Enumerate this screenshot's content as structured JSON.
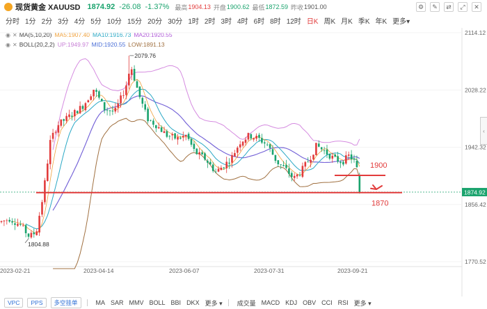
{
  "header": {
    "name": "现货黄金 XAUUSD",
    "price": "1874.92",
    "change": "-26.08",
    "percent": "-1.37%",
    "high_label": "最高",
    "high": "1904.13",
    "open_label": "开盘",
    "open": "1900.62",
    "low_label": "最低",
    "low": "1872.59",
    "prev_label": "昨收",
    "prev": "1901.00",
    "icons": [
      "settings-icon",
      "draw-icon",
      "compare-icon",
      "fullscreen-icon",
      "close-icon"
    ]
  },
  "tabs": [
    "分时",
    "1分",
    "2分",
    "3分",
    "4分",
    "5分",
    "10分",
    "15分",
    "20分",
    "30分",
    "1时",
    "2时",
    "3时",
    "4时",
    "6时",
    "8时",
    "12时",
    "日K",
    "周K",
    "月K",
    "季K",
    "年K",
    "更多▾"
  ],
  "active_tab": "日K",
  "indicators": {
    "ma": {
      "name": "MA(5,10,20)",
      "ma5": "MA5:1907.40",
      "ma10": "MA10:1916.73",
      "ma20": "MA20:1920.55"
    },
    "boll": {
      "name": "BOLL(20,2,2)",
      "up": "UP:1949.97",
      "mid": "MID:1920.55",
      "low": "LOW:1891.13"
    }
  },
  "chart_data": {
    "type": "candlestick",
    "y_ticks": [
      "2114.12",
      "2028.22",
      "1942.32",
      "1856.42",
      "1770.52"
    ],
    "x_ticks": [
      "2023-02-21",
      "2023-04-14",
      "2023-06-07",
      "2023-07-31",
      "2023-09-21"
    ],
    "ylim": [
      1770.52,
      2114.12
    ],
    "current_price": "1874.92",
    "high_annotation": "2079.76",
    "low_annotation": "1804.88",
    "annotations": [
      {
        "text": "1900",
        "color": "#e23b3b"
      },
      {
        "text": "1870",
        "color": "#e23b3b"
      }
    ],
    "support_levels": [
      1900,
      1870
    ],
    "colors": {
      "up": "#e23b3b",
      "down": "#1aa36d",
      "boll_up": "#d58be0",
      "boll_mid": "#4a6ed6",
      "boll_low": "#a07040",
      "ma5": "#f0a13b",
      "ma10": "#2aa8c5",
      "ma20": "#7d63d8"
    }
  },
  "bottom": {
    "buttons": [
      "VPC",
      "PPS",
      "多空挂单"
    ],
    "main_inds": [
      "MA",
      "SAR",
      "MMV",
      "BOLL",
      "BBI",
      "DKX",
      "更多 ▾"
    ],
    "sub_inds": [
      "成交量",
      "MACD",
      "KDJ",
      "OBV",
      "CCI",
      "RSI",
      "更多 ▾"
    ]
  }
}
